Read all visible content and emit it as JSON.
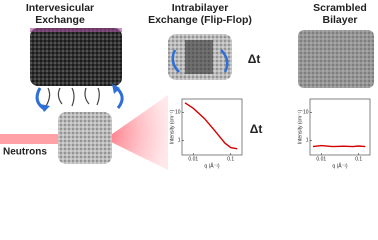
{
  "titles": [
    {
      "lines": [
        "Intervesicular",
        "Exchange"
      ]
    },
    {
      "lines": [
        "Intrabilayer",
        "Exchange (Flip-Flop)"
      ]
    },
    {
      "lines": [
        "Scrambled",
        "Bilayer"
      ]
    }
  ],
  "delta_t": [
    "Δt",
    "Δt"
  ],
  "neutrons": "Neutrons",
  "plots": [
    {
      "type": "line",
      "xlabel": "q (Å⁻¹)",
      "ylabel": "Intensity (cm⁻¹)",
      "xlog": true,
      "ylog": true,
      "color": "#d40000",
      "xlim": [
        0.005,
        0.2
      ],
      "ylim": [
        0.3,
        30
      ],
      "xticks": [
        0.01,
        0.1
      ],
      "yticks": [
        1,
        10
      ],
      "x": [
        0.006,
        0.01,
        0.02,
        0.04,
        0.07,
        0.1,
        0.15
      ],
      "y": [
        22,
        14,
        6,
        2,
        0.8,
        0.55,
        0.5
      ]
    },
    {
      "type": "line",
      "xlabel": "q (Å⁻¹)",
      "ylabel": "Intensity (cm⁻¹)",
      "xlog": true,
      "ylog": true,
      "color": "#d40000",
      "xlim": [
        0.005,
        0.2
      ],
      "ylim": [
        0.3,
        30
      ],
      "xticks": [
        0.01,
        0.1
      ],
      "yticks": [
        1,
        10
      ],
      "x": [
        0.006,
        0.01,
        0.02,
        0.04,
        0.07,
        0.1,
        0.15
      ],
      "y": [
        0.6,
        0.65,
        0.6,
        0.62,
        0.6,
        0.63,
        0.6
      ]
    }
  ]
}
